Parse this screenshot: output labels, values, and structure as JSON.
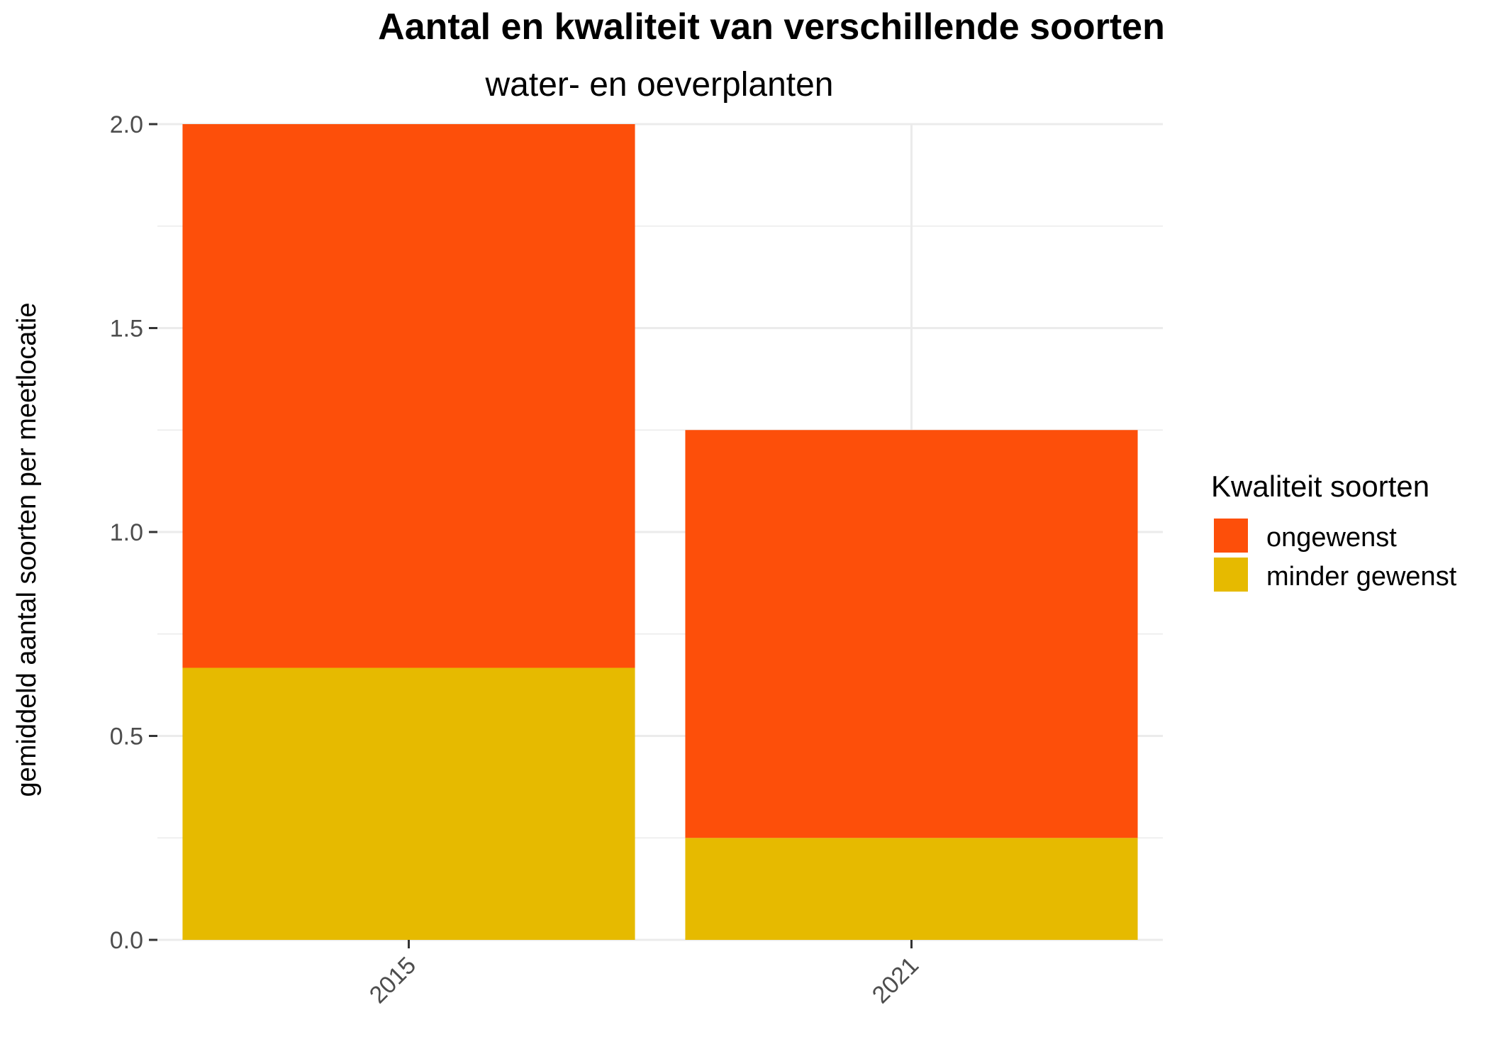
{
  "chart_data": {
    "type": "bar",
    "stacked": true,
    "title": "Aantal en kwaliteit van verschillende soorten",
    "subtitle": "water- en oeverplanten",
    "xlabel": "",
    "ylabel": "gemiddeld aantal soorten per meetlocatie",
    "categories": [
      "2015",
      "2021"
    ],
    "series": [
      {
        "name": "minder gewenst",
        "values": [
          0.667,
          0.25
        ],
        "color": "#E6BA00"
      },
      {
        "name": "ongewenst",
        "values": [
          1.333,
          1.0
        ],
        "color": "#FD4F0A"
      }
    ],
    "ylim": [
      0,
      2
    ],
    "yticks": [
      0.0,
      0.5,
      1.0,
      1.5,
      2.0
    ],
    "ytick_labels": [
      "0.0",
      "0.5",
      "1.0",
      "1.5",
      "2.0"
    ],
    "grid": true,
    "legend": {
      "title": "Kwaliteit soorten",
      "position": "right",
      "entries": [
        {
          "label": "ongewenst",
          "color": "#FD4F0A"
        },
        {
          "label": "minder gewenst",
          "color": "#E6BA00"
        }
      ]
    }
  }
}
